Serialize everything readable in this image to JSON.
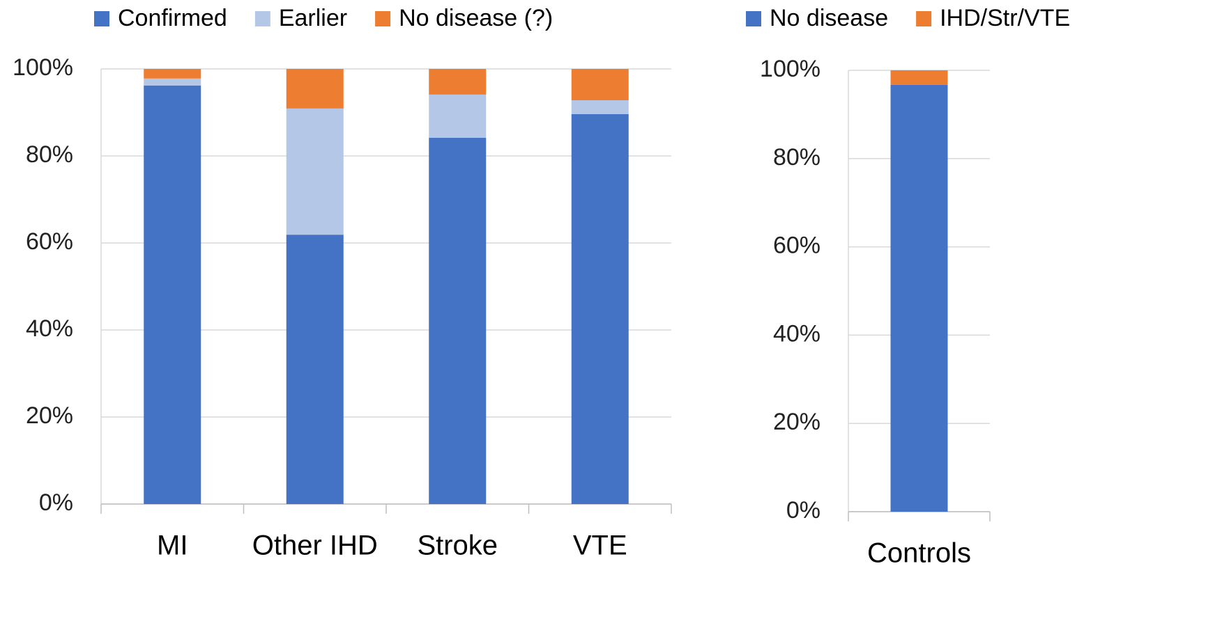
{
  "chart_data": [
    {
      "type": "bar",
      "stacked": true,
      "grid": true,
      "legend": "top",
      "categories": [
        "MI",
        "Other IHD",
        "Stroke",
        "VTE"
      ],
      "series": [
        {
          "name": "Confirmed",
          "color": "#4472c4",
          "values": [
            96.2,
            61.9,
            84.2,
            89.6
          ]
        },
        {
          "name": "Earlier",
          "color": "#b4c7e7",
          "values": [
            1.6,
            29,
            9.9,
            3.2
          ]
        },
        {
          "name": "No disease (?)",
          "color": "#ed7d31",
          "values": [
            2.2,
            9.1,
            5.9,
            7.2
          ]
        }
      ],
      "ylim": [
        0,
        100
      ],
      "yticks": [
        {
          "value": 0,
          "label": "0%"
        },
        {
          "value": 20,
          "label": "20%"
        },
        {
          "value": 40,
          "label": "40%"
        },
        {
          "value": 60,
          "label": "60%"
        },
        {
          "value": 80,
          "label": "80%"
        },
        {
          "value": 100,
          "label": "100%"
        }
      ]
    },
    {
      "type": "bar",
      "stacked": true,
      "grid": true,
      "legend": "top",
      "categories": [
        "Controls"
      ],
      "series": [
        {
          "name": "No disease",
          "color": "#4472c4",
          "values": [
            96.7
          ]
        },
        {
          "name": "IHD/Str/VTE",
          "color": "#ed7d31",
          "values": [
            3.3
          ]
        }
      ],
      "ylim": [
        0,
        100
      ],
      "yticks": [
        {
          "value": 0,
          "label": "0%"
        },
        {
          "value": 20,
          "label": "20%"
        },
        {
          "value": 40,
          "label": "40%"
        },
        {
          "value": 60,
          "label": "60%"
        },
        {
          "value": 80,
          "label": "80%"
        },
        {
          "value": 100,
          "label": "100%"
        }
      ]
    }
  ]
}
